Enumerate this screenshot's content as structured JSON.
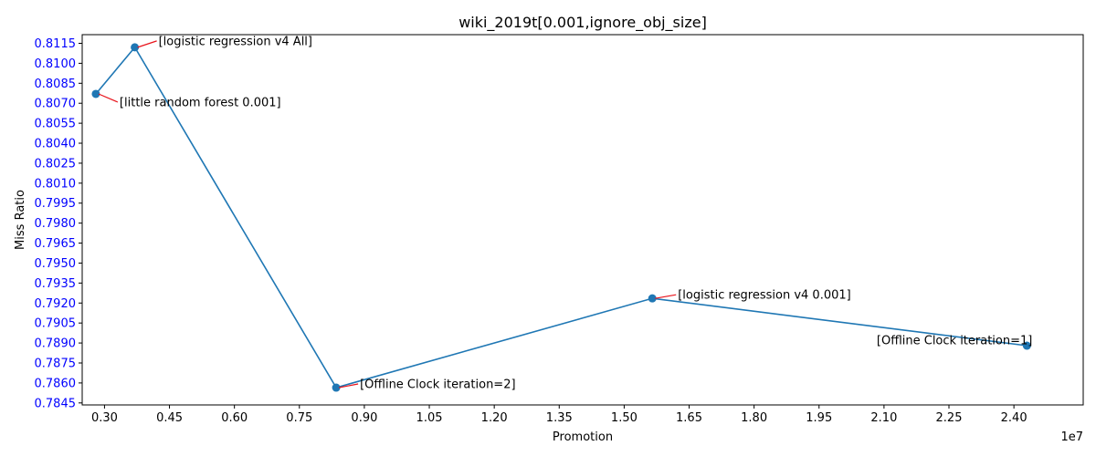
{
  "chart_data": {
    "type": "line",
    "title": "wiki_2019t[0.001,ignore_obj_size]",
    "xlabel": "Promotion",
    "ylabel": "Miss Ratio",
    "x_offset_label": "1e7",
    "x_scale": 10000000,
    "xlim": [
      2485000,
      25600000
    ],
    "ylim": [
      0.78435,
      0.81215
    ],
    "x_ticks": [
      3000000,
      4500000,
      6000000,
      7500000,
      9000000,
      10500000,
      12000000,
      13500000,
      15000000,
      16500000,
      18000000,
      19500000,
      21000000,
      22500000,
      24000000
    ],
    "x_tick_labels": [
      "0.30",
      "0.45",
      "0.60",
      "0.75",
      "0.90",
      "1.05",
      "1.20",
      "1.35",
      "1.50",
      "1.65",
      "1.80",
      "1.95",
      "2.10",
      "2.25",
      "2.40"
    ],
    "y_ticks": [
      0.7845,
      0.786,
      0.7875,
      0.789,
      0.7905,
      0.792,
      0.7935,
      0.795,
      0.7965,
      0.798,
      0.7995,
      0.801,
      0.8025,
      0.804,
      0.8055,
      0.807,
      0.8085,
      0.81,
      0.8115
    ],
    "y_tick_labels": [
      "0.7845",
      "0.7860",
      "0.7875",
      "0.7890",
      "0.7905",
      "0.7920",
      "0.7935",
      "0.7950",
      "0.7965",
      "0.7980",
      "0.7995",
      "0.8010",
      "0.8025",
      "0.8040",
      "0.8055",
      "0.8070",
      "0.8085",
      "0.8100",
      "0.8115"
    ],
    "grid": false,
    "colors": {
      "line": "#1f77b4",
      "marker": "#1f77b4",
      "annotation_arrow": "#e8141c",
      "y_tick_labels": "#0000ff",
      "text": "#000000"
    },
    "series": [
      {
        "x": [
          2800000,
          3700000,
          8350000,
          15650000,
          24300000
        ],
        "y": [
          0.8077,
          0.8112,
          0.78565,
          0.79235,
          0.7888
        ]
      }
    ],
    "annotations": [
      {
        "text": "[little random forest 0.001]",
        "point": 0
      },
      {
        "text": "[logistic regression v4 All]",
        "point": 1
      },
      {
        "text": "[Offline Clock iteration=2]",
        "point": 2
      },
      {
        "text": "[logistic regression v4 0.001]",
        "point": 3
      },
      {
        "text": "[Offline Clock iteration=1]",
        "point": 4
      }
    ]
  }
}
